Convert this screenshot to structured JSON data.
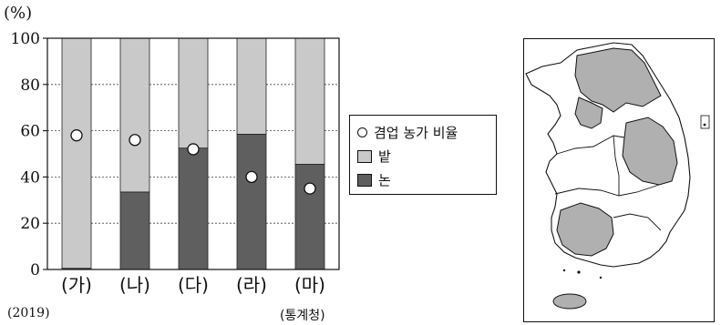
{
  "chart_data": {
    "type": "bar",
    "stacked": true,
    "categories": [
      "(가)",
      "(나)",
      "(다)",
      "(라)",
      "(마)"
    ],
    "series": [
      {
        "name": "논",
        "values": [
          0.5,
          33.5,
          52.5,
          58.5,
          45.5
        ],
        "color": "#5f5f5f"
      },
      {
        "name": "밭",
        "values": [
          99.5,
          66.5,
          47.5,
          41.5,
          54.5
        ],
        "color": "#c9c9c9"
      }
    ],
    "overlay": {
      "name": "겸업 농가 비율",
      "values": [
        58,
        56,
        52,
        40,
        35
      ],
      "marker": "open-circle"
    },
    "ylabel": "(%)",
    "ylim": [
      0,
      100
    ],
    "yticks": [
      0,
      20,
      40,
      60,
      80,
      100
    ],
    "grid": "dotted-horizontal",
    "legend_placement": "right",
    "year_note": "(2019)",
    "source_note": "(통계청)"
  },
  "legend": {
    "items": [
      {
        "label": "겸업 농가 비율",
        "kind": "circle"
      },
      {
        "label": "밭",
        "kind": "box",
        "color": "#c9c9c9"
      },
      {
        "label": "논",
        "kind": "box",
        "color": "#5f5f5f"
      }
    ]
  },
  "map": {
    "description_icon": "korea-region-map-icon",
    "highlight_color": "#b0b0b0"
  }
}
